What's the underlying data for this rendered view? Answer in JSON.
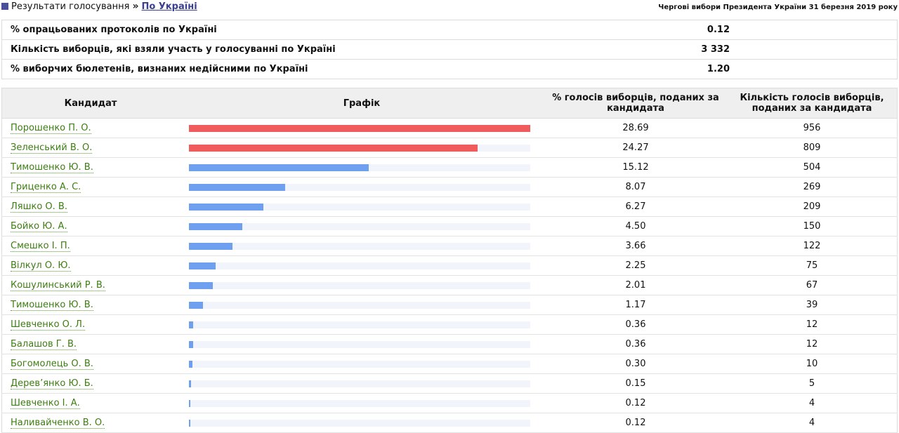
{
  "breadcrumb": {
    "root": "Результати голосування",
    "separator": "»",
    "current": "По Україні"
  },
  "election_title": "Чергові вибори Президента України 31 березня 2019 року",
  "summary": [
    {
      "label": "% опрацьованих протоколів по Україні",
      "value": "0.12"
    },
    {
      "label": "Кількість виборців, які взяли участь у голосуванні по Україні",
      "value": "3 332"
    },
    {
      "label": "% виборчих бюлетенів, визнаних недійсними по Україні",
      "value": "1.20"
    }
  ],
  "results": {
    "headers": {
      "candidate": "Кандидат",
      "chart": "Графік",
      "percent": "% голосів виборців, поданих за кандидата",
      "votes": "Кількість голосів виборців, поданих за кандидата"
    },
    "colors": {
      "leader": "#f05b5b",
      "other": "#6fa0f0",
      "track": "#f2f4fb"
    },
    "rows": [
      {
        "name": "Порошенко П. О.",
        "percent": "28.69",
        "votes": "956",
        "leader": true
      },
      {
        "name": "Зеленський В. О.",
        "percent": "24.27",
        "votes": "809",
        "leader": true
      },
      {
        "name": "Тимошенко Ю. В.",
        "percent": "15.12",
        "votes": "504",
        "leader": false
      },
      {
        "name": "Гриценко А. С.",
        "percent": "8.07",
        "votes": "269",
        "leader": false
      },
      {
        "name": "Ляшко О. В.",
        "percent": "6.27",
        "votes": "209",
        "leader": false
      },
      {
        "name": "Бойко Ю. А.",
        "percent": "4.50",
        "votes": "150",
        "leader": false
      },
      {
        "name": "Смешко І. П.",
        "percent": "3.66",
        "votes": "122",
        "leader": false
      },
      {
        "name": "Вілкул О. Ю.",
        "percent": "2.25",
        "votes": "75",
        "leader": false
      },
      {
        "name": "Кошулинський Р. В.",
        "percent": "2.01",
        "votes": "67",
        "leader": false
      },
      {
        "name": "Тимошенко Ю. В.",
        "percent": "1.17",
        "votes": "39",
        "leader": false
      },
      {
        "name": "Шевченко О. Л.",
        "percent": "0.36",
        "votes": "12",
        "leader": false
      },
      {
        "name": "Балашов Г. В.",
        "percent": "0.36",
        "votes": "12",
        "leader": false
      },
      {
        "name": "Богомолець О. В.",
        "percent": "0.30",
        "votes": "10",
        "leader": false
      },
      {
        "name": "Дерев’янко Ю. Б.",
        "percent": "0.15",
        "votes": "5",
        "leader": false
      },
      {
        "name": "Шевченко І. А.",
        "percent": "0.12",
        "votes": "4",
        "leader": false
      },
      {
        "name": "Наливайченко В. О.",
        "percent": "0.12",
        "votes": "4",
        "leader": false
      }
    ]
  }
}
